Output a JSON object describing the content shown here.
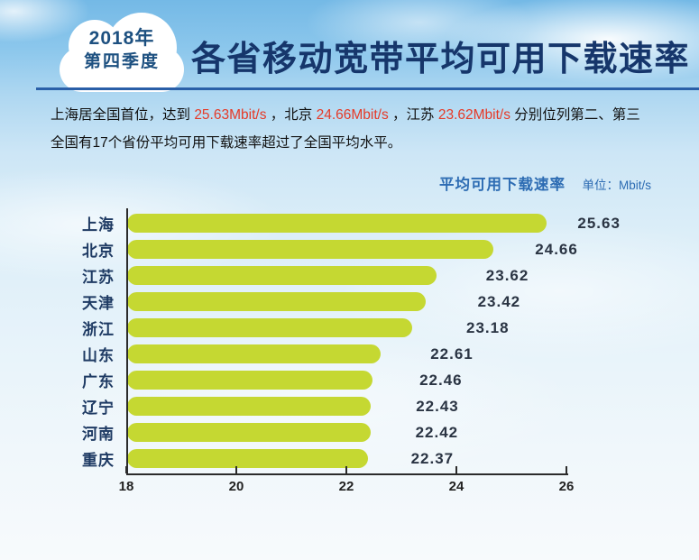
{
  "header": {
    "badge": {
      "line1": "2018年",
      "line2": "第四季度"
    },
    "title": "各省移动宽带平均可用下载速率"
  },
  "summary": {
    "lines": [
      {
        "segments": [
          {
            "text": "上海居全国首位，达到 ",
            "highlight": false
          },
          {
            "text": "25.63Mbit/s",
            "highlight": true
          },
          {
            "text": " ，北京 ",
            "highlight": false
          },
          {
            "text": "24.66Mbit/s",
            "highlight": true
          },
          {
            "text": " ，江苏 ",
            "highlight": false
          },
          {
            "text": "23.62Mbit/s",
            "highlight": true
          },
          {
            "text": " 分别位列第二、第三",
            "highlight": false
          }
        ]
      },
      {
        "segments": [
          {
            "text": "全国有17个省份平均可用下载速率超过了全国平均水平。",
            "highlight": false
          }
        ]
      }
    ]
  },
  "chart_data": {
    "type": "bar",
    "orientation": "horizontal",
    "title": "平均可用下载速率",
    "unit_label": "单位：Mbit/s",
    "categories": [
      "上海",
      "北京",
      "江苏",
      "天津",
      "浙江",
      "山东",
      "广东",
      "辽宁",
      "河南",
      "重庆"
    ],
    "values": [
      25.63,
      24.66,
      23.62,
      23.42,
      23.18,
      22.61,
      22.46,
      22.43,
      22.42,
      22.37
    ],
    "xlim": [
      18,
      26
    ],
    "x_ticks": [
      18,
      20,
      22,
      24,
      26
    ],
    "grid": false,
    "legend": false,
    "value_labels": "right of bars",
    "bar_color": "#c5d832"
  },
  "colors": {
    "title_navy": "#16366b",
    "badge_text": "#1d5080",
    "divider_blue": "#2a5fa8",
    "highlight_red": "#e53a28",
    "chart_header_blue": "#2d6cb3",
    "bar_green": "#c5d832",
    "axis_dark": "#2b2b2b"
  }
}
